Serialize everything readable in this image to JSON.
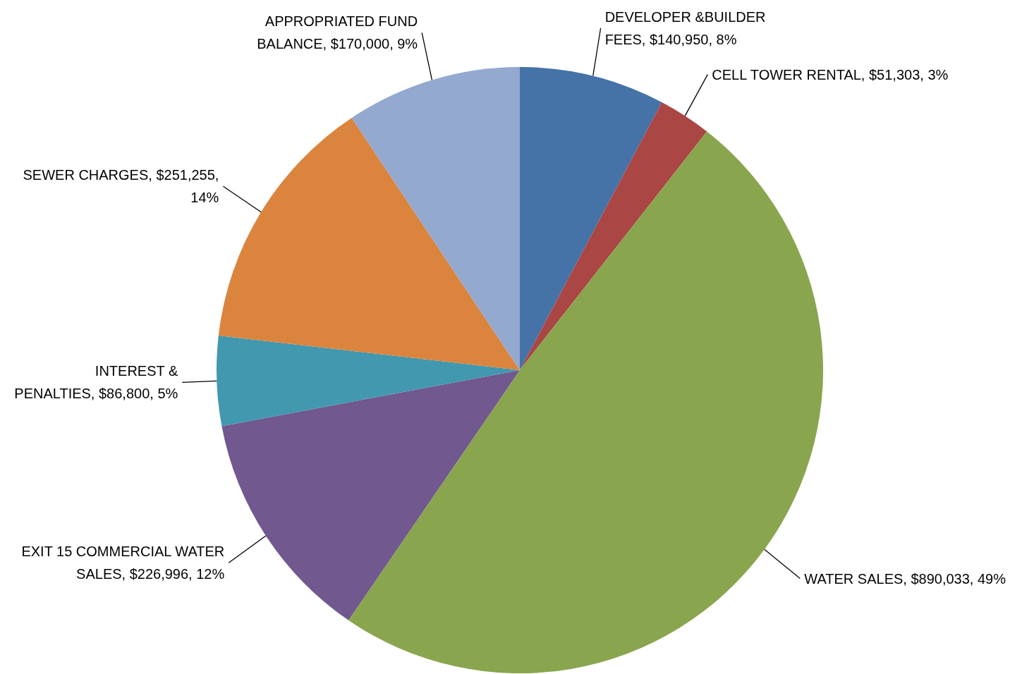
{
  "chart_data": {
    "type": "pie",
    "categories": [
      "DEVELOPER &BUILDER FEES",
      "CELL TOWER RENTAL",
      "WATER SALES",
      "EXIT 15 COMMERCIAL WATER SALES",
      "INTEREST & PENALTIES",
      "SEWER CHARGES",
      "APPROPRIATED FUND BALANCE"
    ],
    "values": [
      140950,
      51303,
      890033,
      226996,
      86800,
      251255,
      170000
    ],
    "value_labels": [
      "$140,950, 8%",
      "$51,303, 3%",
      "$890,033, 49%",
      "$226,996, 12%",
      "$86,800, 5%",
      "$251,255, 14%",
      "$170,000, 9%"
    ],
    "colors": [
      "#4572a7",
      "#aa4643",
      "#89a54e",
      "#71588f",
      "#4198af",
      "#db843d",
      "#93a9cf"
    ]
  }
}
